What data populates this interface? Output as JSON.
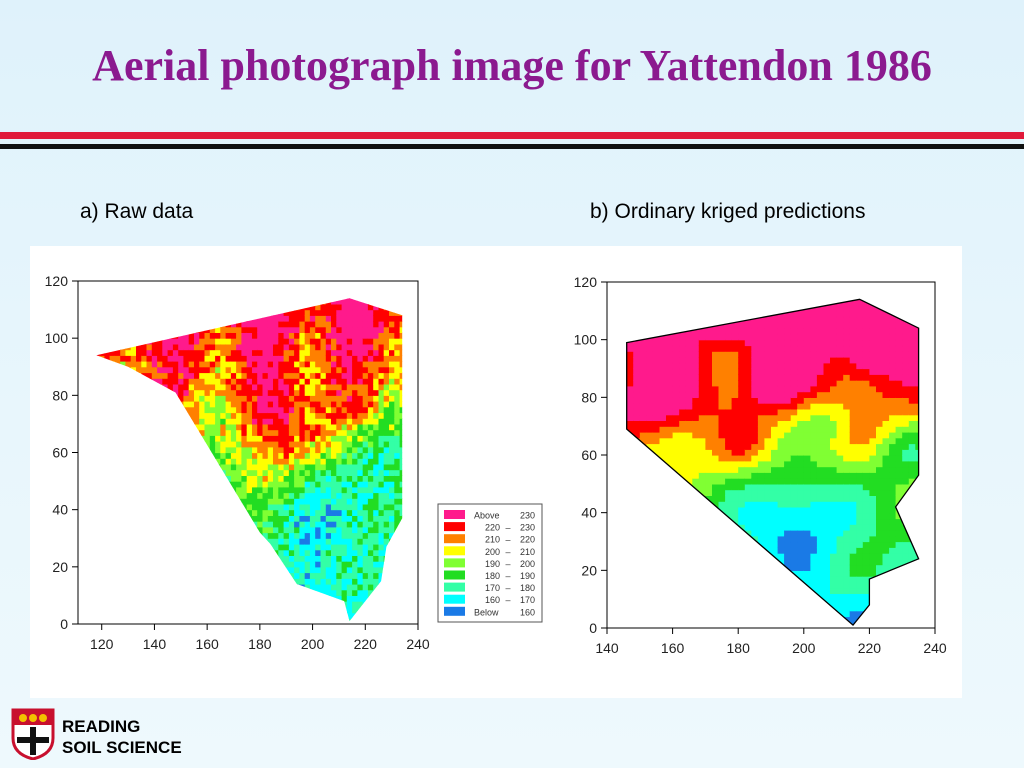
{
  "title": "Aerial photograph image for Yattendon 1986",
  "colors": {
    "title": "#8b1a8f",
    "rule_red": "#e0193a",
    "rule_black": "#111111"
  },
  "logo": {
    "icon": "reading-university-crest",
    "line1": "READING",
    "line2": "SOIL SCIENCE"
  },
  "chart_data": [
    {
      "type": "heatmap",
      "title": "a) Raw data",
      "xlim": [
        111,
        240
      ],
      "ylim": [
        0,
        120
      ],
      "xticks": [
        120,
        140,
        160,
        180,
        200,
        220,
        240
      ],
      "yticks": [
        0,
        20,
        40,
        60,
        80,
        100,
        120
      ],
      "legend": {
        "placement": "bottom-right",
        "entries": [
          {
            "label": [
              "Above",
              "230"
            ],
            "color": "#ff1a8c"
          },
          {
            "label": [
              "220",
              "230"
            ],
            "color": "#ff0000"
          },
          {
            "label": [
              "210",
              "220"
            ],
            "color": "#ff8000"
          },
          {
            "label": [
              "200",
              "210"
            ],
            "color": "#ffff00"
          },
          {
            "label": [
              "190",
              "200"
            ],
            "color": "#80ff33"
          },
          {
            "label": [
              "180",
              "190"
            ],
            "color": "#22dd22"
          },
          {
            "label": [
              "170",
              "180"
            ],
            "color": "#33ffa6"
          },
          {
            "label": [
              "160",
              "170"
            ],
            "color": "#00ffff"
          },
          {
            "label": [
              "Below",
              "160"
            ],
            "color": "#1a7ae6"
          }
        ]
      },
      "boundary": [
        [
          118,
          94
        ],
        [
          214,
          114
        ],
        [
          234,
          108
        ],
        [
          234,
          37
        ],
        [
          228,
          27
        ],
        [
          226,
          15
        ],
        [
          214,
          1
        ],
        [
          212,
          8
        ],
        [
          194,
          14
        ],
        [
          184,
          28
        ],
        [
          180,
          32
        ],
        [
          148,
          81
        ],
        [
          130,
          90
        ]
      ]
    },
    {
      "type": "heatmap",
      "title": "b) Ordinary kriged predictions",
      "xlim": [
        140,
        240
      ],
      "ylim": [
        0,
        120
      ],
      "xticks": [
        140,
        160,
        180,
        200,
        220,
        240
      ],
      "yticks": [
        0,
        20,
        40,
        60,
        80,
        100,
        120
      ],
      "boundary": [
        [
          146,
          99
        ],
        [
          217,
          114
        ],
        [
          235,
          104
        ],
        [
          235,
          53
        ],
        [
          228,
          42
        ],
        [
          235,
          24
        ],
        [
          220,
          17
        ],
        [
          220,
          8
        ],
        [
          215,
          1
        ],
        [
          146,
          69
        ]
      ]
    }
  ]
}
